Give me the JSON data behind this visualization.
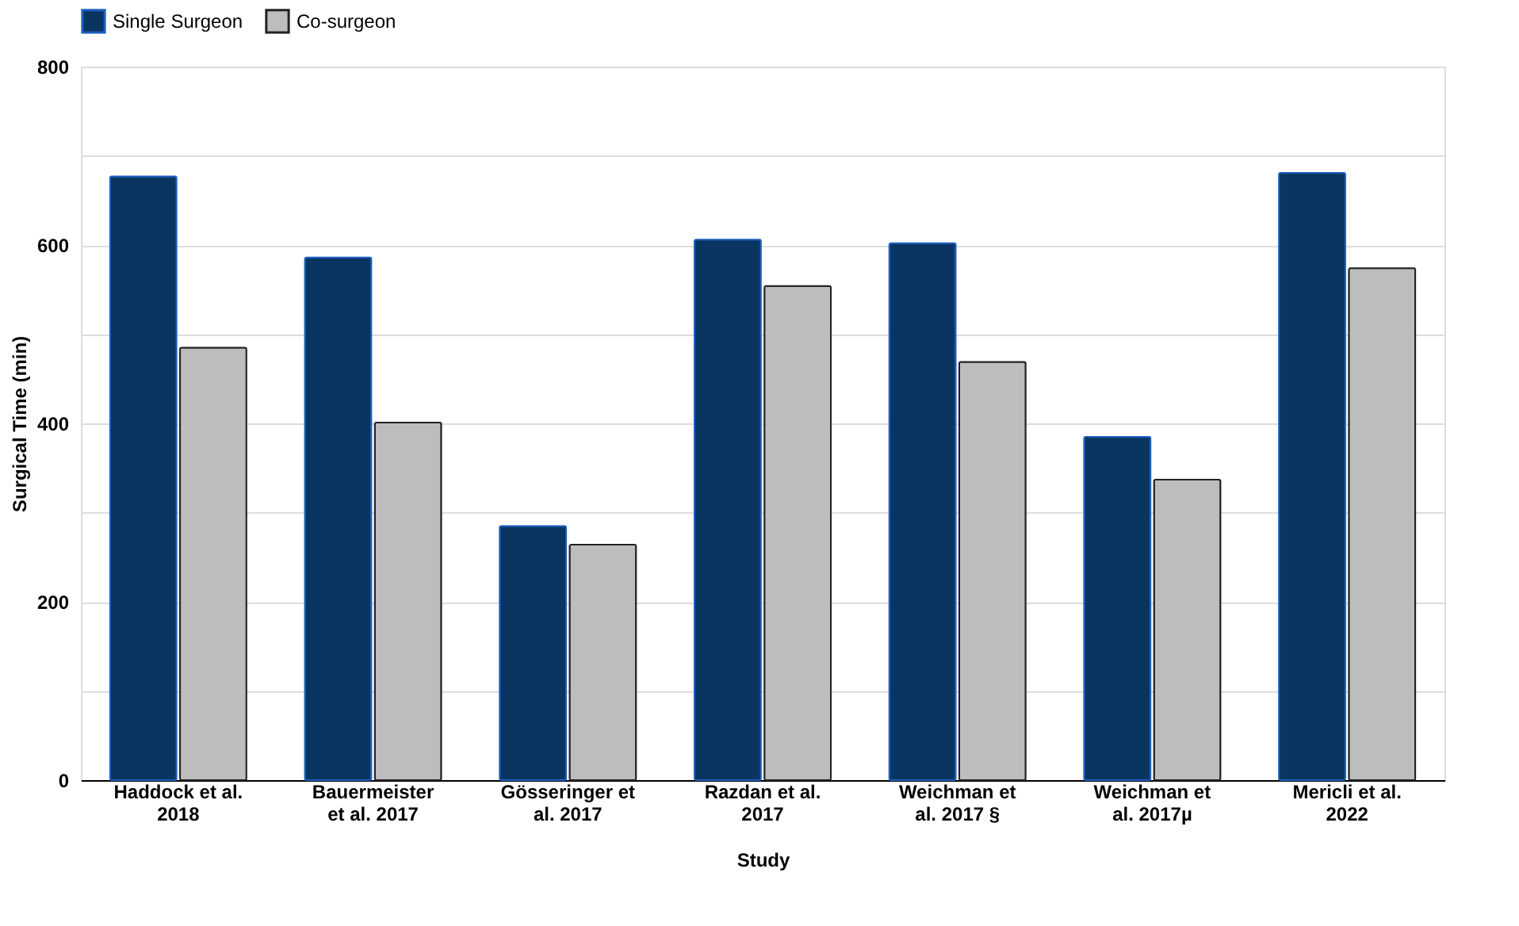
{
  "chart_data": {
    "type": "bar",
    "categories": [
      "Haddock et al. 2018",
      "Bauermeister et al. 2017",
      "Gösseringer et al. 2017",
      "Razdan et al. 2017",
      "Weichman et al. 2017 §",
      "Weichman et al. 2017µ",
      "Mericli et al. 2022"
    ],
    "series": [
      {
        "name": "Single Surgeon",
        "color": "#0b3561",
        "values": [
          677,
          586,
          285,
          606,
          602,
          385,
          681
        ]
      },
      {
        "name": "Co-surgeon",
        "color": "#bdbdbd",
        "values": [
          485,
          401,
          264,
          554,
          469,
          337,
          574
        ]
      }
    ],
    "xlabel": "Study",
    "ylabel": "Surgical Time (min)",
    "ylim": [
      0,
      800
    ],
    "yticks": [
      0,
      {
        "value": 100,
        "label": null
      },
      200,
      {
        "value": 300,
        "label": null
      },
      400,
      {
        "value": 500,
        "label": null
      },
      600,
      {
        "value": 700,
        "label": null
      },
      800
    ],
    "grid": "y",
    "legend": "top"
  }
}
